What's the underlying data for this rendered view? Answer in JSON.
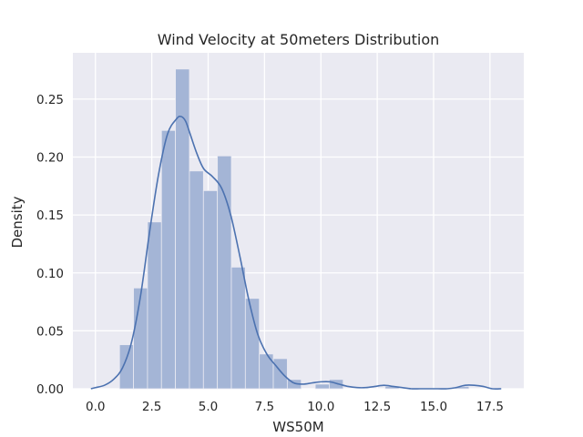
{
  "chart_data": {
    "type": "bar",
    "subtype": "histogram-with-kde",
    "title": "Wind Velocity at 50meters Distribution",
    "xlabel": "WS50M",
    "ylabel": "Density",
    "xlim": [
      -1.0,
      19.0
    ],
    "ylim": [
      0,
      0.29
    ],
    "x_ticks": [
      0.0,
      2.5,
      5.0,
      7.5,
      10.0,
      12.5,
      15.0,
      17.5
    ],
    "x_tick_labels": [
      "0.0",
      "2.5",
      "5.0",
      "7.5",
      "10.0",
      "12.5",
      "15.0",
      "17.5"
    ],
    "y_ticks": [
      0.0,
      0.05,
      0.1,
      0.15,
      0.2,
      0.25
    ],
    "y_tick_labels": [
      "0.00",
      "0.05",
      "0.10",
      "0.15",
      "0.20",
      "0.25"
    ],
    "grid": true,
    "background_color": "#eaeaf2",
    "bar_color": "#a4b5d6",
    "line_color": "#4c72b0",
    "bin_width": 0.62,
    "bins": [
      {
        "x0": 1.07,
        "density": 0.038
      },
      {
        "x0": 1.69,
        "density": 0.087
      },
      {
        "x0": 2.31,
        "density": 0.144
      },
      {
        "x0": 2.93,
        "density": 0.223
      },
      {
        "x0": 3.55,
        "density": 0.276
      },
      {
        "x0": 4.17,
        "density": 0.188
      },
      {
        "x0": 4.79,
        "density": 0.171
      },
      {
        "x0": 5.41,
        "density": 0.201
      },
      {
        "x0": 6.03,
        "density": 0.105
      },
      {
        "x0": 6.65,
        "density": 0.078
      },
      {
        "x0": 7.27,
        "density": 0.03
      },
      {
        "x0": 7.89,
        "density": 0.026
      },
      {
        "x0": 8.51,
        "density": 0.008
      },
      {
        "x0": 9.13,
        "density": 0.0
      },
      {
        "x0": 9.75,
        "density": 0.004
      },
      {
        "x0": 10.37,
        "density": 0.008
      },
      {
        "x0": 10.99,
        "density": 0.0
      },
      {
        "x0": 11.61,
        "density": 0.0
      },
      {
        "x0": 12.23,
        "density": 0.0
      },
      {
        "x0": 12.85,
        "density": 0.002
      },
      {
        "x0": 13.47,
        "density": 0.0
      },
      {
        "x0": 14.09,
        "density": 0.0
      },
      {
        "x0": 14.71,
        "density": 0.0
      },
      {
        "x0": 15.33,
        "density": 0.0
      },
      {
        "x0": 15.95,
        "density": 0.002
      },
      {
        "x0": 16.57,
        "density": 0.0
      },
      {
        "x0": 17.19,
        "density": 0.0
      }
    ],
    "kde": {
      "x": [
        -0.2,
        0.0,
        0.4,
        0.8,
        1.2,
        1.6,
        2.0,
        2.4,
        2.8,
        3.2,
        3.6,
        3.8,
        4.0,
        4.2,
        4.5,
        4.8,
        5.2,
        5.6,
        6.0,
        6.4,
        6.8,
        7.2,
        7.6,
        8.0,
        8.4,
        8.8,
        9.2,
        9.6,
        10.0,
        10.4,
        10.8,
        11.2,
        11.6,
        12.0,
        12.4,
        12.8,
        13.2,
        13.6,
        14.0,
        14.4,
        14.8,
        15.2,
        15.6,
        16.0,
        16.4,
        16.8,
        17.2,
        17.6,
        18.0
      ],
      "y": [
        0.0,
        0.001,
        0.003,
        0.008,
        0.018,
        0.04,
        0.08,
        0.135,
        0.185,
        0.22,
        0.233,
        0.235,
        0.231,
        0.22,
        0.203,
        0.19,
        0.183,
        0.173,
        0.15,
        0.115,
        0.077,
        0.047,
        0.03,
        0.02,
        0.011,
        0.005,
        0.004,
        0.005,
        0.006,
        0.006,
        0.004,
        0.002,
        0.001,
        0.001,
        0.002,
        0.003,
        0.002,
        0.001,
        0.0,
        0.0,
        0.0,
        0.0,
        0.0,
        0.001,
        0.003,
        0.003,
        0.002,
        0.0,
        0.0
      ]
    }
  }
}
